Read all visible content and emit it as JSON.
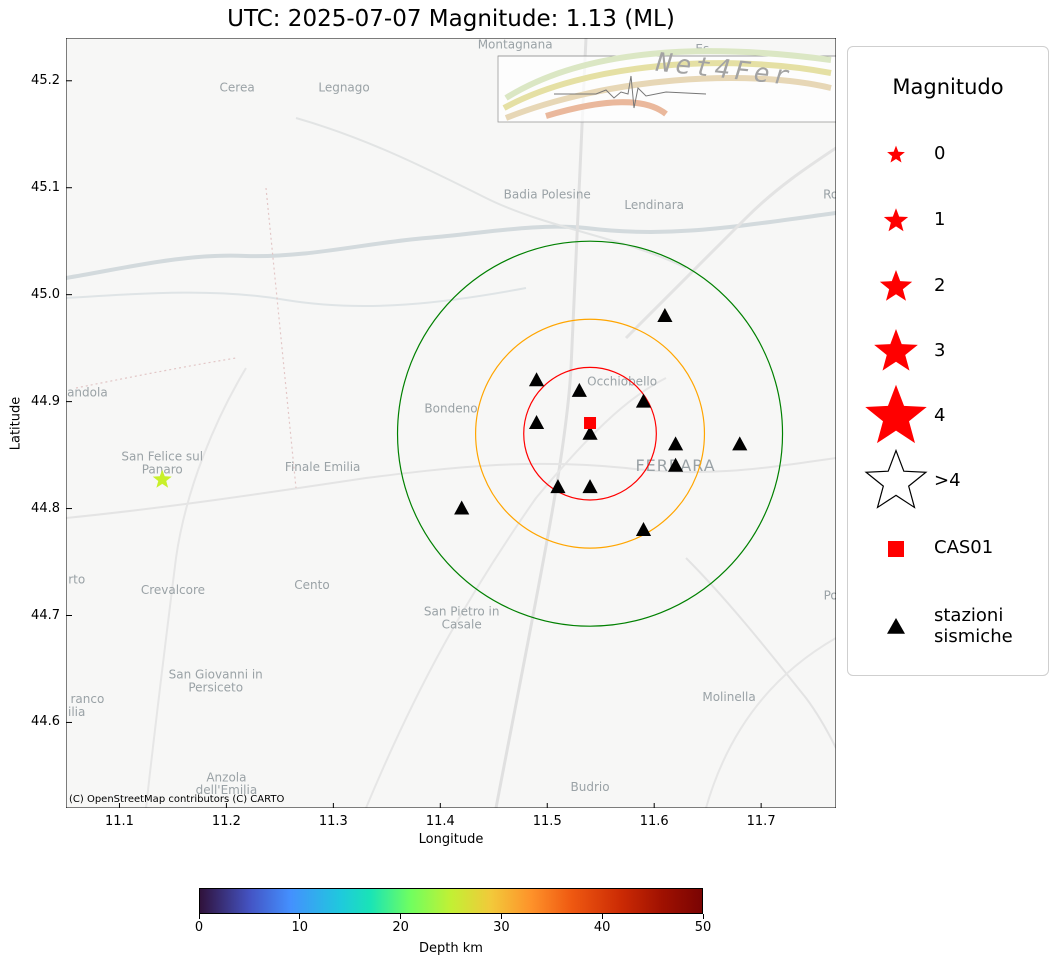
{
  "title": "UTC: 2025-07-07 Magnitude: 1.13 (ML)",
  "map": {
    "xlabel": "Longitude",
    "ylabel": "Latitude",
    "xlim": [
      11.05,
      11.77
    ],
    "ylim": [
      44.52,
      45.24
    ],
    "xticks": [
      "11.1",
      "11.2",
      "11.3",
      "11.4",
      "11.5",
      "11.6",
      "11.7"
    ],
    "yticks": [
      "44.6",
      "44.7",
      "44.8",
      "44.9",
      "45.0",
      "45.1",
      "45.2"
    ],
    "xtick_values": [
      11.1,
      11.2,
      11.3,
      11.4,
      11.5,
      11.6,
      11.7
    ],
    "ytick_values": [
      44.6,
      44.7,
      44.8,
      44.9,
      45.0,
      45.1,
      45.2
    ],
    "attribution": "(C) OpenStreetMap contributors (C) CARTO",
    "logo_text": "Net4Fer",
    "places": [
      {
        "name": "Montagnana",
        "lon": 11.47,
        "lat": 45.23
      },
      {
        "name": "Cerea",
        "lon": 11.21,
        "lat": 45.19
      },
      {
        "name": "Legnago",
        "lon": 11.31,
        "lat": 45.19
      },
      {
        "name": "Badia Polesine",
        "lon": 11.5,
        "lat": 45.09
      },
      {
        "name": "Lendinara",
        "lon": 11.6,
        "lat": 45.08
      },
      {
        "name": "Occhiobello",
        "lon": 11.57,
        "lat": 44.915
      },
      {
        "name": "Bondeno",
        "lon": 11.41,
        "lat": 44.89
      },
      {
        "name": "FERRARA",
        "lon": 11.62,
        "lat": 44.835
      },
      {
        "name": "Finale Emilia",
        "lon": 11.29,
        "lat": 44.835
      },
      {
        "name": "San Felice sul",
        "lon": 11.14,
        "lat": 44.845
      },
      {
        "name": "Panaro",
        "lon": 11.14,
        "lat": 44.833
      },
      {
        "name": "Crevalcore",
        "lon": 11.15,
        "lat": 44.72
      },
      {
        "name": "Cento",
        "lon": 11.28,
        "lat": 44.725
      },
      {
        "name": "San Pietro in",
        "lon": 11.42,
        "lat": 44.7
      },
      {
        "name": "Casale",
        "lon": 11.42,
        "lat": 44.688
      },
      {
        "name": "San Giovanni in",
        "lon": 11.19,
        "lat": 44.641
      },
      {
        "name": "Persiceto",
        "lon": 11.19,
        "lat": 44.629
      },
      {
        "name": "Molinella",
        "lon": 11.67,
        "lat": 44.62
      },
      {
        "name": "Anzola",
        "lon": 11.2,
        "lat": 44.545
      },
      {
        "name": "dell'Emilia",
        "lon": 11.2,
        "lat": 44.533
      },
      {
        "name": "Budrio",
        "lon": 11.54,
        "lat": 44.536
      },
      {
        "name": "andola",
        "lon": 11.07,
        "lat": 44.905
      },
      {
        "name": "rto",
        "lon": 11.06,
        "lat": 44.73
      },
      {
        "name": "ranco",
        "lon": 11.07,
        "lat": 44.618
      },
      {
        "name": "ilia",
        "lon": 11.06,
        "lat": 44.606
      },
      {
        "name": "Es",
        "lon": 11.645,
        "lat": 45.226
      },
      {
        "name": "Ro",
        "lon": 11.765,
        "lat": 45.09
      },
      {
        "name": "Po",
        "lon": 11.765,
        "lat": 44.715
      }
    ],
    "event": {
      "lon": 11.14,
      "lat": 44.827,
      "color": "#c8f02a"
    },
    "station_main": {
      "name": "CAS01",
      "lon": 11.54,
      "lat": 44.88,
      "color": "#ff0000"
    },
    "circles": [
      {
        "center_lon": 11.54,
        "center_lat": 44.87,
        "radius_lat": 0.062,
        "color": "#ff0000"
      },
      {
        "center_lon": 11.54,
        "center_lat": 44.87,
        "radius_lat": 0.107,
        "color": "#ffa500"
      },
      {
        "center_lon": 11.54,
        "center_lat": 44.87,
        "radius_lat": 0.18,
        "color": "#008000"
      }
    ],
    "stations": [
      {
        "lon": 11.61,
        "lat": 44.98
      },
      {
        "lon": 11.49,
        "lat": 44.92
      },
      {
        "lon": 11.53,
        "lat": 44.91
      },
      {
        "lon": 11.59,
        "lat": 44.9
      },
      {
        "lon": 11.49,
        "lat": 44.88
      },
      {
        "lon": 11.54,
        "lat": 44.87
      },
      {
        "lon": 11.62,
        "lat": 44.86
      },
      {
        "lon": 11.68,
        "lat": 44.86
      },
      {
        "lon": 11.62,
        "lat": 44.84
      },
      {
        "lon": 11.51,
        "lat": 44.82
      },
      {
        "lon": 11.54,
        "lat": 44.82
      },
      {
        "lon": 11.42,
        "lat": 44.8
      },
      {
        "lon": 11.59,
        "lat": 44.78
      }
    ]
  },
  "legend": {
    "title": "Magnitudo",
    "items": [
      {
        "label": "0",
        "symbol": "star",
        "size": 11,
        "color": "#ff0000"
      },
      {
        "label": "1",
        "symbol": "star",
        "size": 15,
        "color": "#ff0000"
      },
      {
        "label": "2",
        "symbol": "star",
        "size": 20,
        "color": "#ff0000"
      },
      {
        "label": "3",
        "symbol": "star",
        "size": 27,
        "color": "#ff0000"
      },
      {
        "label": "4",
        "symbol": "star",
        "size": 38,
        "color": "#ff0000"
      },
      {
        "label": ">4",
        "symbol": "star-outline",
        "size": 37,
        "color": "#000000"
      },
      {
        "label": "CAS01",
        "symbol": "square",
        "size": 8,
        "color": "#ff0000"
      },
      {
        "label": "stazioni",
        "label2": "sismiche",
        "symbol": "triangle",
        "size": 9,
        "color": "#000000"
      }
    ]
  },
  "colorbar": {
    "label": "Depth km",
    "ticks": [
      "0",
      "10",
      "20",
      "30",
      "40",
      "50"
    ],
    "range": [
      0,
      50
    ]
  }
}
